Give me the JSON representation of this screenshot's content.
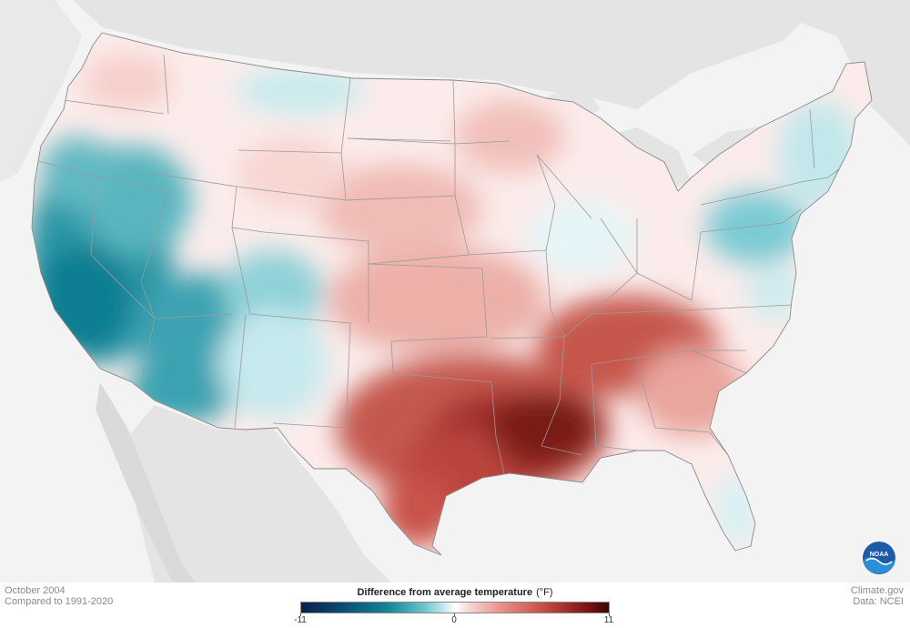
{
  "legend": {
    "title": "Difference from average temperature",
    "unit": "(°F)",
    "ticks": [
      "-11",
      "0",
      "11"
    ]
  },
  "footer": {
    "period": "October 2004",
    "baseline": "Compared to 1991-2020",
    "credit": "Climate.gov",
    "source": "Data: NCEI"
  },
  "logo": {
    "text": "NOAA"
  },
  "colors": {
    "cold_extreme": "#0b1f4b",
    "cold_strong": "#128495",
    "neutral": "#ffffff",
    "warm_strong": "#c95148",
    "warm_extreme": "#3a0505",
    "background_land": "#e2e2e2",
    "water": "#f3f3f3"
  }
}
